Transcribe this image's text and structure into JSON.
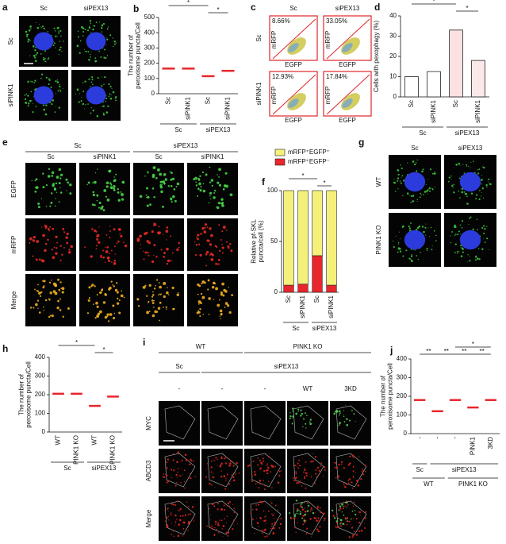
{
  "panels": {
    "a": {
      "label": "a",
      "columns": [
        "Sc",
        "siPEX13"
      ],
      "rows": [
        "Sc",
        "siPINK1"
      ]
    },
    "c": {
      "label": "c",
      "columns": [
        "Sc",
        "siPEX13"
      ],
      "rows": [
        "Sc",
        "siPINK1"
      ],
      "percentages": [
        "8.66%",
        "33.05%",
        "12.93%",
        "17.84%"
      ],
      "xlabel": "EGFP",
      "ylabel": "mRFP"
    },
    "e": {
      "label": "e",
      "groups": [
        "Sc",
        "siPEX13"
      ],
      "columns": [
        "Sc",
        "siPINK1",
        "Sc",
        "siPINK1"
      ],
      "rows": [
        "EGFP",
        "mRFP",
        "Merge"
      ]
    },
    "g": {
      "label": "g",
      "columns": [
        "Sc",
        "siPEX13"
      ],
      "rows": [
        "WT",
        "PINK1 KO"
      ]
    },
    "i": {
      "label": "i",
      "genotypes": [
        "WT",
        "PINK1 KO"
      ],
      "treatments": [
        "Sc",
        "siPEX13"
      ],
      "columns": [
        "-",
        "-",
        "-",
        "WT",
        "3KD"
      ],
      "rows": [
        "MYC",
        "ABCD3",
        "Merge"
      ]
    }
  },
  "chart_data": [
    {
      "panel": "b",
      "type": "dot",
      "ylabel": [
        "The number of",
        "peroxisome puncta/Cell"
      ],
      "categories": [
        "Sc",
        "siPINK1",
        "Sc",
        "siPINK1"
      ],
      "groups": [
        "Sc",
        "siPEX13"
      ],
      "values": [
        165,
        165,
        115,
        150
      ],
      "color": "#e8262b",
      "ylim": [
        0,
        500
      ],
      "yticks": [
        0,
        100,
        200,
        300,
        400,
        500
      ],
      "annotations": [
        "*",
        "*"
      ]
    },
    {
      "panel": "d",
      "type": "bar",
      "ylabel": [
        "Cells with pexophagy (%)"
      ],
      "categories": [
        "Sc",
        "siPINK1",
        "Sc",
        "siPINK1"
      ],
      "groups": [
        "Sc",
        "siPEX13"
      ],
      "values": [
        10,
        12.5,
        33,
        18
      ],
      "colors": [
        "#ffffff",
        "#ffffff",
        "#fbe1e1",
        "#fbe8e8"
      ],
      "ylim": [
        0,
        40
      ],
      "yticks": [
        0,
        10,
        20,
        30,
        40
      ],
      "annotations": [
        "*",
        "*"
      ]
    },
    {
      "panel": "f",
      "type": "stacked_bar",
      "ylabel": [
        "Relative pf-SKL",
        "puncta/cell (%)"
      ],
      "categories": [
        "Sc",
        "siPINK1",
        "Sc",
        "siPINK1"
      ],
      "groups": [
        "Sc",
        "siPEX13"
      ],
      "series": [
        {
          "name": "mRFP⁺EGFP⁻",
          "color": "#e8262b",
          "values": [
            7,
            8,
            36,
            7
          ]
        },
        {
          "name": "mRFP⁺EGFP⁺",
          "color": "#f5f07a",
          "values": [
            93,
            92,
            64,
            93
          ]
        }
      ],
      "ylim": [
        0,
        100
      ],
      "yticks": [
        0,
        50,
        100
      ],
      "annotations": [
        "*",
        "*"
      ]
    },
    {
      "panel": "h",
      "type": "dot",
      "ylabel": [
        "The number of",
        "peroxisome puncta/Cell"
      ],
      "categories": [
        "WT",
        "PINK1 KO",
        "WT",
        "PINK1 KO"
      ],
      "groups": [
        "Sc",
        "siPEX13"
      ],
      "values": [
        205,
        205,
        140,
        190
      ],
      "color": "#e8262b",
      "ylim": [
        0,
        400
      ],
      "yticks": [
        0,
        100,
        200,
        300,
        400
      ],
      "annotations": [
        "*",
        "*"
      ]
    },
    {
      "panel": "j",
      "type": "dot",
      "ylabel": [
        "The number of",
        "peroxisome puncta/Cell"
      ],
      "categories": [
        "-",
        "-",
        "-",
        "PINK1",
        "3KD"
      ],
      "groups": [
        "Sc",
        "siPEX13"
      ],
      "groups2": [
        "WT",
        "PINK1 KO"
      ],
      "values": [
        180,
        120,
        180,
        140,
        180
      ],
      "color": "#e8262b",
      "ylim": [
        0,
        400
      ],
      "yticks": [
        0,
        100,
        200,
        300,
        400
      ],
      "annotations": [
        "**",
        "**",
        "**",
        "**",
        "*"
      ]
    }
  ]
}
